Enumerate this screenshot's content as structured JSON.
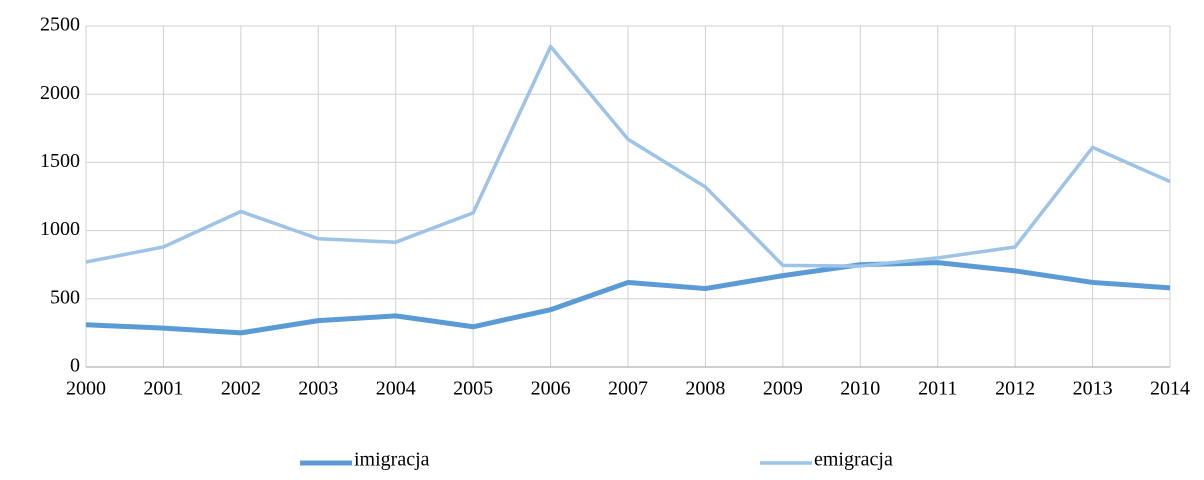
{
  "chart_data": {
    "type": "line",
    "x": [
      2000,
      2001,
      2002,
      2003,
      2004,
      2005,
      2006,
      2007,
      2008,
      2009,
      2010,
      2011,
      2012,
      2013,
      2014
    ],
    "series": [
      {
        "name": "imigracja",
        "color": "#5b9bd5",
        "values": [
          310,
          285,
          250,
          340,
          375,
          295,
          420,
          620,
          575,
          670,
          750,
          765,
          705,
          620,
          580
        ]
      },
      {
        "name": "emigracja",
        "color": "#9dc3e6",
        "values": [
          770,
          880,
          1140,
          940,
          915,
          1130,
          2350,
          1670,
          1320,
          745,
          740,
          800,
          880,
          1610,
          1360
        ]
      }
    ],
    "xlim": [
      2000,
      2014
    ],
    "xticks": [
      2000,
      2001,
      2002,
      2003,
      2004,
      2005,
      2006,
      2007,
      2008,
      2009,
      2010,
      2011,
      2012,
      2013,
      2014
    ],
    "ylim": [
      0,
      2500
    ],
    "yticks": [
      0,
      500,
      1000,
      1500,
      2000,
      2500
    ],
    "grid": true,
    "legend": "bottom"
  }
}
